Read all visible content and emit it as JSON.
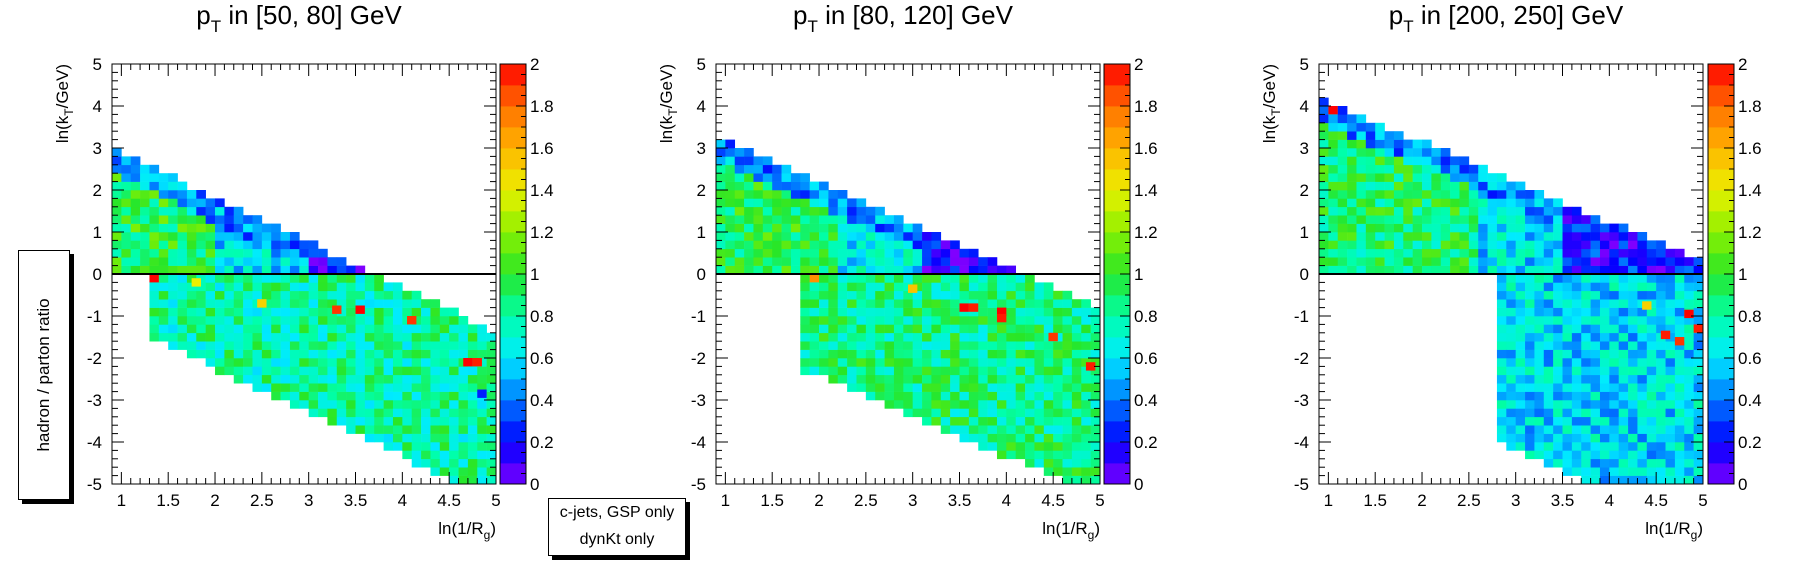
{
  "figure": {
    "y_side_label": "hadron / parton ratio",
    "legend_lines": [
      "c-jets, GSP only",
      "dynKt only"
    ]
  },
  "chart_data": [
    {
      "type": "heatmap",
      "title_parts": {
        "p": "p",
        "sub": "T",
        "rest": " in [50, 80] GeV"
      },
      "xlabel_parts": {
        "main": "ln(1/R",
        "sub": "g",
        "close": ")"
      },
      "ylabel_parts": {
        "main": "ln(k",
        "sub": "T",
        "close": "/GeV)"
      },
      "xlim": [
        0.9,
        5.0
      ],
      "ylim": [
        -5,
        5
      ],
      "x_ticks": [
        "1",
        "1.5",
        "2",
        "2.5",
        "3",
        "3.5",
        "4",
        "4.5",
        "5"
      ],
      "y_ticks": [
        "5",
        "4",
        "3",
        "2",
        "1",
        "0",
        "-1",
        "-2",
        "-3",
        "-4",
        "-5"
      ],
      "z_ticks": [
        "2",
        "1.8",
        "1.6",
        "1.4",
        "1.2",
        "1",
        "0.8",
        "0.6",
        "0.4",
        "0.2",
        "0"
      ],
      "zlim": [
        0,
        2
      ],
      "reference_line_y": 0,
      "band": {
        "upper_start": 2.9,
        "upper_slope": -1.07,
        "lower_start": 1.0,
        "lower_slope": -1.05,
        "x_end": 5.0
      },
      "region_values": [
        {
          "x_min": 0.9,
          "x_max": 2.0,
          "ln_kt_min": 0,
          "ln_kt_max": 5,
          "z": 0.95
        },
        {
          "x_min": 2.0,
          "x_max": 3.0,
          "ln_kt_min": 0,
          "ln_kt_max": 5,
          "z": 0.6
        },
        {
          "x_min": 3.0,
          "x_max": 5.0,
          "ln_kt_min": 0,
          "ln_kt_max": 5,
          "z": 0.15
        },
        {
          "x_min": 1.3,
          "x_max": 5.0,
          "ln_kt_min": -5,
          "ln_kt_max": 0,
          "z": 0.8
        }
      ],
      "hot_cells": [
        {
          "x": 1.35,
          "ln_kt": -0.1,
          "z": 2.0
        },
        {
          "x": 3.3,
          "ln_kt": -0.85,
          "z": 1.9
        },
        {
          "x": 3.55,
          "ln_kt": -0.85,
          "z": 2.0
        },
        {
          "x": 4.7,
          "ln_kt": -2.1,
          "z": 2.0
        },
        {
          "x": 4.8,
          "ln_kt": -2.1,
          "z": 1.95
        },
        {
          "x": 4.1,
          "ln_kt": -1.1,
          "z": 1.9
        },
        {
          "x": 1.8,
          "ln_kt": -0.2,
          "z": 1.4
        },
        {
          "x": 4.85,
          "ln_kt": -2.85,
          "z": 0.25
        },
        {
          "x": 2.5,
          "ln_kt": -0.7,
          "z": 1.5
        }
      ]
    },
    {
      "type": "heatmap",
      "title_parts": {
        "p": "p",
        "sub": "T",
        "rest": " in [80, 120] GeV"
      },
      "xlabel_parts": {
        "main": "ln(1/R",
        "sub": "g",
        "close": ")"
      },
      "ylabel_parts": {
        "main": "ln(k",
        "sub": "T",
        "close": "/GeV)"
      },
      "xlim": [
        0.9,
        5.0
      ],
      "ylim": [
        -5,
        5
      ],
      "x_ticks": [
        "1",
        "1.5",
        "2",
        "2.5",
        "3",
        "3.5",
        "4",
        "4.5",
        "5"
      ],
      "y_ticks": [
        "5",
        "4",
        "3",
        "2",
        "1",
        "0",
        "-1",
        "-2",
        "-3",
        "-4",
        "-5"
      ],
      "z_ticks": [
        "2",
        "1.8",
        "1.6",
        "1.4",
        "1.2",
        "1",
        "0.8",
        "0.6",
        "0.4",
        "0.2",
        "0"
      ],
      "zlim": [
        0,
        2
      ],
      "reference_line_y": 0,
      "band": {
        "upper_start": 3.2,
        "upper_slope": -1.0,
        "lower_start": 1.3,
        "lower_slope": -0.95,
        "x_end": 5.0
      },
      "region_values": [
        {
          "x_min": 0.9,
          "x_max": 2.2,
          "ln_kt_min": 0,
          "ln_kt_max": 5,
          "z": 0.95
        },
        {
          "x_min": 2.2,
          "x_max": 3.1,
          "ln_kt_min": 0,
          "ln_kt_max": 5,
          "z": 0.65
        },
        {
          "x_min": 3.1,
          "x_max": 5.0,
          "ln_kt_min": 0,
          "ln_kt_max": 5,
          "z": 0.15
        },
        {
          "x_min": 1.8,
          "x_max": 5.0,
          "ln_kt_min": -5,
          "ln_kt_max": 0,
          "z": 0.85
        }
      ],
      "hot_cells": [
        {
          "x": 3.55,
          "ln_kt": -0.8,
          "z": 2.0
        },
        {
          "x": 3.65,
          "ln_kt": -0.8,
          "z": 1.95
        },
        {
          "x": 3.95,
          "ln_kt": -0.9,
          "z": 2.0
        },
        {
          "x": 3.95,
          "ln_kt": -1.05,
          "z": 1.95
        },
        {
          "x": 4.5,
          "ln_kt": -1.5,
          "z": 1.9
        },
        {
          "x": 4.9,
          "ln_kt": -2.2,
          "z": 1.95
        },
        {
          "x": 1.95,
          "ln_kt": -0.1,
          "z": 1.7
        },
        {
          "x": 3.0,
          "ln_kt": -0.35,
          "z": 1.55
        }
      ]
    },
    {
      "type": "heatmap",
      "title_parts": {
        "p": "p",
        "sub": "T",
        "rest": " in [200, 250] GeV"
      },
      "xlabel_parts": {
        "main": "ln(1/R",
        "sub": "g",
        "close": ")"
      },
      "ylabel_parts": {
        "main": "ln(k",
        "sub": "T",
        "close": "/GeV)"
      },
      "xlim": [
        0.9,
        5.0
      ],
      "ylim": [
        -5,
        5
      ],
      "x_ticks": [
        "1",
        "1.5",
        "2",
        "2.5",
        "3",
        "3.5",
        "4",
        "4.5",
        "5"
      ],
      "y_ticks": [
        "5",
        "4",
        "3",
        "2",
        "1",
        "0",
        "-1",
        "-2",
        "-3",
        "-4",
        "-5"
      ],
      "z_ticks": [
        "2",
        "1.8",
        "1.6",
        "1.4",
        "1.2",
        "1",
        "0.8",
        "0.6",
        "0.4",
        "0.2",
        "0"
      ],
      "zlim": [
        0,
        2
      ],
      "reference_line_y": 0,
      "band": {
        "upper_start": 4.1,
        "upper_slope": -0.95,
        "lower_start": 2.0,
        "lower_slope": -1.0,
        "x_end": 5.0
      },
      "region_values": [
        {
          "x_min": 0.9,
          "x_max": 2.6,
          "ln_kt_min": 0,
          "ln_kt_max": 5,
          "z": 0.9
        },
        {
          "x_min": 2.6,
          "x_max": 3.5,
          "ln_kt_min": 0,
          "ln_kt_max": 5,
          "z": 0.6
        },
        {
          "x_min": 3.5,
          "x_max": 5.0,
          "ln_kt_min": 0,
          "ln_kt_max": 5,
          "z": 0.2
        },
        {
          "x_min": 2.8,
          "x_max": 5.0,
          "ln_kt_min": -5,
          "ln_kt_max": 0,
          "z": 0.6
        }
      ],
      "hot_cells": [
        {
          "x": 1.05,
          "ln_kt": 3.9,
          "z": 2.0
        },
        {
          "x": 4.85,
          "ln_kt": -0.95,
          "z": 2.0
        },
        {
          "x": 4.95,
          "ln_kt": -1.3,
          "z": 1.95
        },
        {
          "x": 4.6,
          "ln_kt": -1.45,
          "z": 1.95
        },
        {
          "x": 4.75,
          "ln_kt": -1.6,
          "z": 1.9
        },
        {
          "x": 4.4,
          "ln_kt": -0.75,
          "z": 1.5
        }
      ]
    }
  ]
}
